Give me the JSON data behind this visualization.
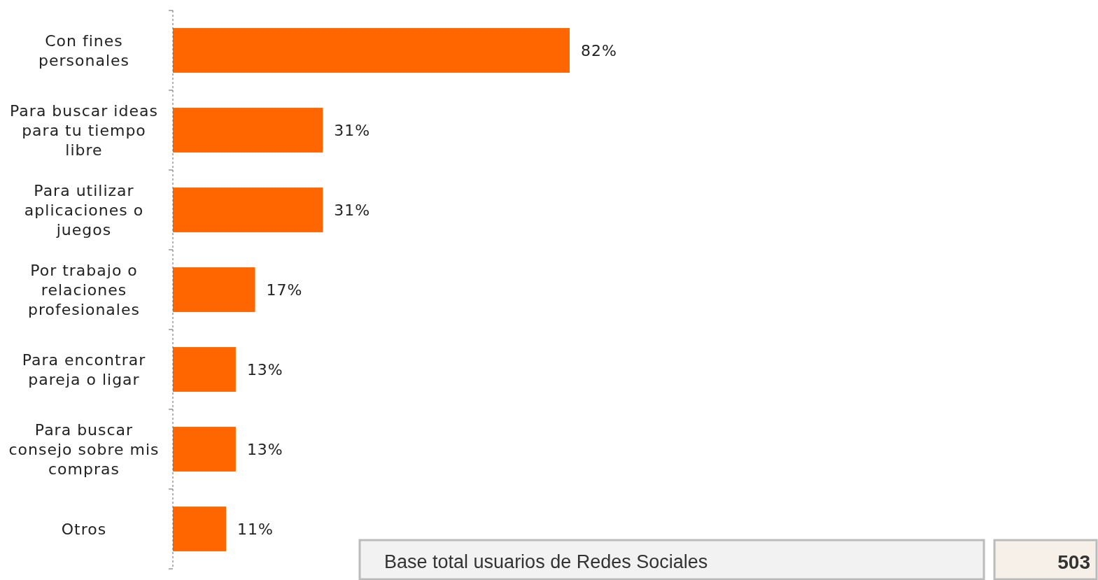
{
  "chart_data": {
    "type": "bar",
    "orientation": "horizontal",
    "categories": [
      "Con fines personales",
      "Para buscar ideas para tu tiempo libre",
      "Para utilizar aplicaciones o juegos",
      "Por trabajo o relaciones profesionales",
      "Para encontrar pareja o ligar",
      "Para buscar consejo sobre mis compras",
      "Otros"
    ],
    "values": [
      82,
      31,
      31,
      17,
      13,
      13,
      11
    ],
    "color": "#ff6600",
    "value_labels": [
      "82%",
      "31%",
      "31%",
      "17%",
      "13%",
      "13%",
      "11%"
    ],
    "annotations": [
      "Base total usuarios de Redes Sociales",
      "503"
    ]
  }
}
